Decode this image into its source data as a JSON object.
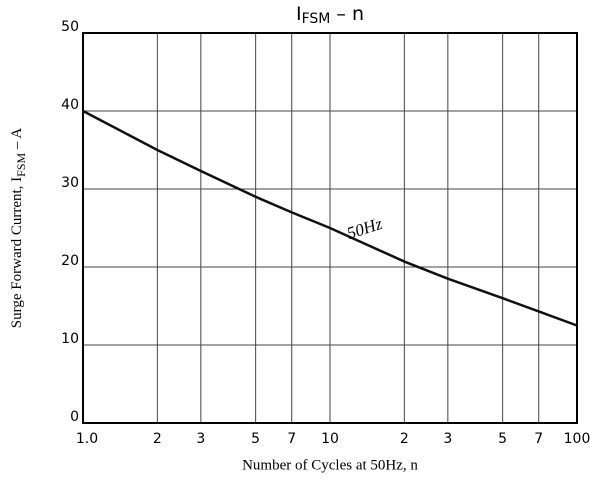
{
  "chart_data": {
    "type": "line",
    "xscale": "log",
    "title": {
      "symbol": "I",
      "subscript": "FSM",
      "rest": " – n"
    },
    "xlabel": "Number of Cycles at 50Hz, n",
    "ylabel": {
      "start": "Surge Forward Current, I",
      "subscript": "FSM",
      "rest": "  –  A"
    },
    "x": [
      1,
      2,
      3,
      5,
      7,
      10,
      20,
      30,
      50,
      70,
      100
    ],
    "series": [
      {
        "name": "50Hz",
        "color": "#111111",
        "values": [
          40,
          35,
          32.3,
          29,
          27,
          25,
          20.7,
          18.5,
          16,
          14.3,
          12.5
        ]
      }
    ],
    "xlim": [
      1,
      100
    ],
    "ylim": [
      0,
      50
    ],
    "xticks": [
      {
        "value": 1,
        "label": "1.0"
      },
      2,
      3,
      5,
      7,
      10,
      {
        "value": 20,
        "label": "2"
      },
      {
        "value": 30,
        "label": "3"
      },
      {
        "value": 50,
        "label": "5"
      },
      {
        "value": 70,
        "label": "7"
      },
      100
    ],
    "yticks": [
      0,
      10,
      20,
      30,
      40,
      50
    ],
    "grid": true
  }
}
